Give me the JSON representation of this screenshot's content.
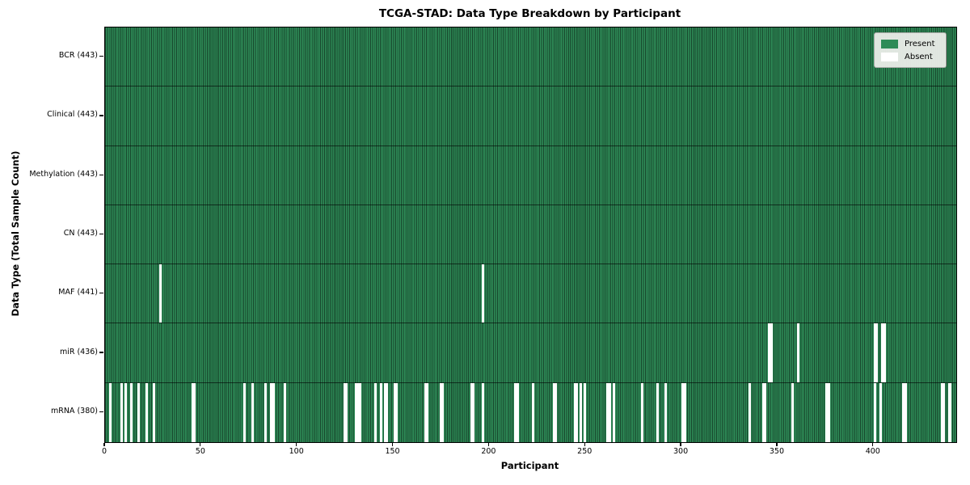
{
  "chart_data": {
    "type": "heatmap",
    "title": "TCGA-STAD: Data Type Breakdown by Participant",
    "xlabel": "Participant",
    "ylabel": "Data Type (Total Sample Count)",
    "x_ticks": [
      0,
      50,
      100,
      150,
      200,
      250,
      300,
      350,
      400
    ],
    "xlim": [
      0,
      443
    ],
    "n_participants": 443,
    "grid": "off",
    "legend_position": "upper right",
    "legend": [
      {
        "label": "Present",
        "color": "#2e8b57"
      },
      {
        "label": "Absent",
        "color": "#ffffff"
      }
    ],
    "colors": {
      "present": "#2e8b57",
      "absent": "#ffffff",
      "bar_edge": "#00000080",
      "row_divider": "#00000099",
      "spine": "#000000",
      "legend_bg": "#ebede9"
    },
    "rows": [
      {
        "label": "BCR (443)",
        "present_count": 443,
        "absent": []
      },
      {
        "label": "Clinical (443)",
        "present_count": 443,
        "absent": []
      },
      {
        "label": "Methylation (443)",
        "present_count": 443,
        "absent": []
      },
      {
        "label": "CN (443)",
        "present_count": 443,
        "absent": []
      },
      {
        "label": "MAF (441)",
        "present_count": 441,
        "absent": [
          28,
          196
        ]
      },
      {
        "label": "miR (436)",
        "present_count": 436,
        "absent": [
          345,
          346,
          360,
          400,
          401,
          404,
          405
        ]
      },
      {
        "label": "mRNA (380)",
        "present_count": 380,
        "absent": [
          2,
          8,
          10,
          13,
          17,
          21,
          25,
          45,
          46,
          72,
          76,
          83,
          86,
          87,
          93,
          124,
          125,
          130,
          131,
          132,
          140,
          143,
          145,
          146,
          150,
          151,
          166,
          167,
          174,
          175,
          190,
          191,
          196,
          213,
          214,
          222,
          233,
          234,
          244,
          245,
          247,
          249,
          261,
          262,
          264,
          279,
          287,
          291,
          300,
          301,
          335,
          342,
          343,
          357,
          375,
          376,
          400,
          403,
          415,
          416,
          435,
          436,
          439
        ]
      }
    ]
  }
}
